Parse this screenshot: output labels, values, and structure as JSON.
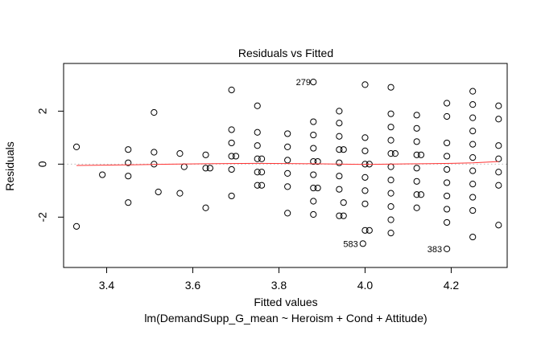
{
  "chart_data": {
    "type": "scatter",
    "title": "Residuals vs Fitted",
    "xlabel": "Fitted values",
    "subtitle": "lm(DemandSupp_G_mean ~ Heroism + Cond + Attitude)",
    "ylabel": "Residuals",
    "xlim": [
      3.3,
      4.33
    ],
    "ylim": [
      -3.9,
      3.8
    ],
    "x_ticks": [
      3.4,
      3.6,
      3.8,
      4.0,
      4.2
    ],
    "x_tick_labels": [
      "3.4",
      "3.6",
      "3.8",
      "4.0",
      "4.2"
    ],
    "y_ticks": [
      -2,
      0,
      2
    ],
    "y_tick_labels": [
      "-2",
      "0",
      "2"
    ],
    "grid": false,
    "reference_line": {
      "y": 0,
      "style": "dotted",
      "color": "#bbbbbb"
    },
    "smoother_color": "#ff3333",
    "smoother": {
      "x": [
        3.33,
        3.45,
        3.55,
        3.65,
        3.75,
        3.85,
        3.95,
        4.0,
        4.05,
        4.1,
        4.15,
        4.2,
        4.25,
        4.31
      ],
      "y": [
        -0.05,
        -0.03,
        0.0,
        0.02,
        0.03,
        0.02,
        0.0,
        -0.01,
        0.0,
        0.01,
        0.02,
        0.03,
        0.05,
        0.1
      ]
    },
    "labeled_points": [
      {
        "label": "279",
        "x": 3.885,
        "y": 3.1
      },
      {
        "label": "583",
        "x": 3.995,
        "y": -3.0
      },
      {
        "label": "383",
        "x": 4.19,
        "y": -3.2
      }
    ],
    "points": [
      [
        3.33,
        0.65
      ],
      [
        3.33,
        -2.35
      ],
      [
        3.39,
        -0.4
      ],
      [
        3.45,
        0.55
      ],
      [
        3.45,
        0.05
      ],
      [
        3.45,
        -0.45
      ],
      [
        3.45,
        -1.45
      ],
      [
        3.51,
        1.95
      ],
      [
        3.51,
        0.45
      ],
      [
        3.51,
        0.0
      ],
      [
        3.52,
        -1.05
      ],
      [
        3.57,
        0.4
      ],
      [
        3.57,
        -1.1
      ],
      [
        3.58,
        -0.1
      ],
      [
        3.63,
        0.35
      ],
      [
        3.63,
        -0.15
      ],
      [
        3.63,
        -1.65
      ],
      [
        3.64,
        -0.15
      ],
      [
        3.69,
        2.8
      ],
      [
        3.69,
        1.3
      ],
      [
        3.69,
        0.8
      ],
      [
        3.69,
        0.3
      ],
      [
        3.69,
        -0.2
      ],
      [
        3.69,
        -1.2
      ],
      [
        3.7,
        0.3
      ],
      [
        3.75,
        2.2
      ],
      [
        3.75,
        1.2
      ],
      [
        3.75,
        0.7
      ],
      [
        3.75,
        0.2
      ],
      [
        3.75,
        -0.3
      ],
      [
        3.75,
        -0.8
      ],
      [
        3.76,
        0.2
      ],
      [
        3.76,
        -0.3
      ],
      [
        3.76,
        -0.8
      ],
      [
        3.82,
        1.15
      ],
      [
        3.82,
        0.65
      ],
      [
        3.82,
        0.15
      ],
      [
        3.82,
        -0.35
      ],
      [
        3.82,
        -0.85
      ],
      [
        3.82,
        -1.85
      ],
      [
        3.88,
        3.1
      ],
      [
        3.88,
        1.6
      ],
      [
        3.88,
        1.1
      ],
      [
        3.88,
        0.6
      ],
      [
        3.88,
        0.1
      ],
      [
        3.88,
        -0.4
      ],
      [
        3.88,
        -0.9
      ],
      [
        3.88,
        -1.4
      ],
      [
        3.88,
        -1.9
      ],
      [
        3.89,
        0.1
      ],
      [
        3.89,
        -0.9
      ],
      [
        3.94,
        2.0
      ],
      [
        3.94,
        1.55
      ],
      [
        3.94,
        1.05
      ],
      [
        3.94,
        0.55
      ],
      [
        3.94,
        0.05
      ],
      [
        3.94,
        -0.45
      ],
      [
        3.94,
        -0.95
      ],
      [
        3.94,
        -1.95
      ],
      [
        3.95,
        0.55
      ],
      [
        3.95,
        -1.45
      ],
      [
        3.95,
        -1.95
      ],
      [
        4.0,
        3.0
      ],
      [
        4.0,
        1.0
      ],
      [
        4.0,
        0.5
      ],
      [
        4.0,
        0.0
      ],
      [
        4.0,
        -0.5
      ],
      [
        4.0,
        -1.0
      ],
      [
        4.0,
        -1.5
      ],
      [
        4.0,
        -2.5
      ],
      [
        3.995,
        -3.0
      ],
      [
        4.01,
        -2.5
      ],
      [
        4.01,
        0.0
      ],
      [
        4.06,
        2.9
      ],
      [
        4.06,
        1.9
      ],
      [
        4.06,
        1.4
      ],
      [
        4.06,
        0.9
      ],
      [
        4.06,
        0.4
      ],
      [
        4.06,
        -0.1
      ],
      [
        4.06,
        -0.6
      ],
      [
        4.06,
        -1.1
      ],
      [
        4.06,
        -1.6
      ],
      [
        4.06,
        -2.1
      ],
      [
        4.06,
        -2.6
      ],
      [
        4.07,
        0.4
      ],
      [
        4.12,
        1.85
      ],
      [
        4.12,
        1.35
      ],
      [
        4.12,
        0.85
      ],
      [
        4.12,
        0.35
      ],
      [
        4.12,
        -0.15
      ],
      [
        4.12,
        -0.65
      ],
      [
        4.12,
        -1.15
      ],
      [
        4.12,
        -1.65
      ],
      [
        4.13,
        0.35
      ],
      [
        4.13,
        -1.15
      ],
      [
        4.19,
        2.3
      ],
      [
        4.19,
        1.8
      ],
      [
        4.19,
        0.8
      ],
      [
        4.19,
        0.3
      ],
      [
        4.19,
        -0.2
      ],
      [
        4.19,
        -0.7
      ],
      [
        4.19,
        -1.2
      ],
      [
        4.19,
        -1.7
      ],
      [
        4.19,
        -2.2
      ],
      [
        4.19,
        -3.2
      ],
      [
        4.25,
        2.75
      ],
      [
        4.25,
        2.25
      ],
      [
        4.25,
        1.75
      ],
      [
        4.25,
        1.25
      ],
      [
        4.25,
        0.75
      ],
      [
        4.25,
        0.25
      ],
      [
        4.25,
        -0.25
      ],
      [
        4.25,
        -0.75
      ],
      [
        4.25,
        -1.25
      ],
      [
        4.25,
        -1.75
      ],
      [
        4.25,
        -2.75
      ],
      [
        4.31,
        2.2
      ],
      [
        4.31,
        1.7
      ],
      [
        4.31,
        0.7
      ],
      [
        4.31,
        0.2
      ],
      [
        4.31,
        -0.3
      ],
      [
        4.31,
        -0.8
      ],
      [
        4.31,
        -2.3
      ]
    ]
  }
}
